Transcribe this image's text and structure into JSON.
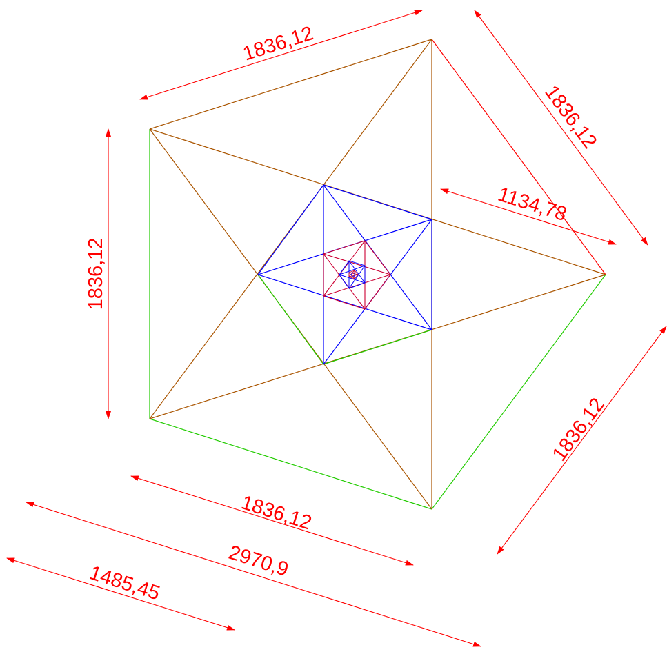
{
  "colors": {
    "dimension": "#ff0000",
    "outer_outline": "#22cc00",
    "star_lines": "#aa5500",
    "level2": "#0000ff",
    "level3": "#cc0033",
    "background": "#ffffff"
  },
  "dimensions": [
    {
      "id": "dim-top-left-side",
      "label": "1836,12"
    },
    {
      "id": "dim-top-right-side",
      "label": "1836,12"
    },
    {
      "id": "dim-left-side",
      "label": "1836,12"
    },
    {
      "id": "dim-inner-diagonal",
      "label": "1134,78"
    },
    {
      "id": "dim-bottom-right-side",
      "label": "1836,12"
    },
    {
      "id": "dim-bottom-side",
      "label": "1836,12"
    },
    {
      "id": "dim-total-width",
      "label": "2970,9"
    },
    {
      "id": "dim-half-width",
      "label": "1485,45"
    }
  ]
}
